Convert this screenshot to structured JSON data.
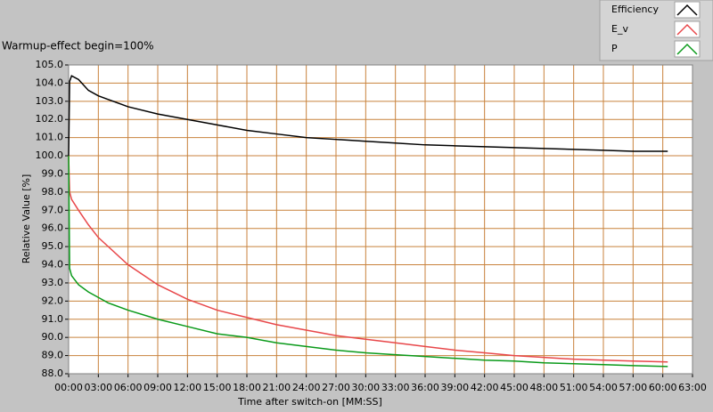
{
  "chart_data": {
    "type": "line",
    "title": "Warmup-effect begin=100%",
    "x_label": "Time after switch-on [MM:SS]",
    "y_label": "Relative Value [%]",
    "x": [
      0,
      0.1,
      0.3,
      1,
      2,
      3,
      4,
      6,
      9,
      12,
      15,
      18,
      21,
      24,
      27,
      30,
      33,
      36,
      39,
      42,
      45,
      48,
      51,
      54,
      57,
      60.5
    ],
    "series": [
      {
        "name": "Efficiency",
        "color": "#000000",
        "values": [
          100,
          104.1,
          104.4,
          104.2,
          103.6,
          103.3,
          103.1,
          102.7,
          102.3,
          102.0,
          101.7,
          101.4,
          101.2,
          101.0,
          100.9,
          100.8,
          100.7,
          100.6,
          100.55,
          100.5,
          100.45,
          100.4,
          100.35,
          100.3,
          100.25,
          100.25
        ]
      },
      {
        "name": "E_v",
        "color": "#e8474a",
        "values": [
          100,
          98.0,
          97.6,
          97.0,
          96.2,
          95.5,
          95.0,
          94.0,
          92.9,
          92.1,
          91.5,
          91.1,
          90.7,
          90.4,
          90.1,
          89.9,
          89.7,
          89.5,
          89.3,
          89.15,
          89.0,
          88.9,
          88.8,
          88.75,
          88.7,
          88.65
        ]
      },
      {
        "name": "P",
        "color": "#0a9a1a",
        "values": [
          100,
          93.8,
          93.4,
          92.9,
          92.5,
          92.2,
          91.9,
          91.5,
          91.0,
          90.6,
          90.2,
          90.0,
          89.7,
          89.5,
          89.3,
          89.15,
          89.05,
          88.95,
          88.85,
          88.75,
          88.7,
          88.6,
          88.55,
          88.5,
          88.45,
          88.4
        ]
      }
    ],
    "xlim": [
      0,
      63
    ],
    "xticks": [
      {
        "value": 0,
        "label": "00:00"
      },
      {
        "value": 3,
        "label": "03:00"
      },
      {
        "value": 6,
        "label": "06:00"
      },
      {
        "value": 9,
        "label": "09:00"
      },
      {
        "value": 12,
        "label": "12:00"
      },
      {
        "value": 15,
        "label": "15:00"
      },
      {
        "value": 18,
        "label": "18:00"
      },
      {
        "value": 21,
        "label": "21:00"
      },
      {
        "value": 24,
        "label": "24:00"
      },
      {
        "value": 27,
        "label": "27:00"
      },
      {
        "value": 30,
        "label": "30:00"
      },
      {
        "value": 33,
        "label": "33:00"
      },
      {
        "value": 36,
        "label": "36:00"
      },
      {
        "value": 39,
        "label": "39:00"
      },
      {
        "value": 42,
        "label": "42:00"
      },
      {
        "value": 45,
        "label": "45:00"
      },
      {
        "value": 48,
        "label": "48:00"
      },
      {
        "value": 51,
        "label": "51:00"
      },
      {
        "value": 54,
        "label": "54:00"
      },
      {
        "value": 57,
        "label": "57:00"
      },
      {
        "value": 60,
        "label": "60:00"
      },
      {
        "value": 63,
        "label": "63:00"
      }
    ],
    "ylim": [
      88,
      105
    ],
    "yticks": [
      {
        "value": 88,
        "label": "88.0"
      },
      {
        "value": 89,
        "label": "89.0"
      },
      {
        "value": 90,
        "label": "90.0"
      },
      {
        "value": 91,
        "label": "91.0"
      },
      {
        "value": 92,
        "label": "92.0"
      },
      {
        "value": 93,
        "label": "93.0"
      },
      {
        "value": 94,
        "label": "94.0"
      },
      {
        "value": 95,
        "label": "95.0"
      },
      {
        "value": 96,
        "label": "96.0"
      },
      {
        "value": 97,
        "label": "97.0"
      },
      {
        "value": 98,
        "label": "98.0"
      },
      {
        "value": 99,
        "label": "99.0"
      },
      {
        "value": 100,
        "label": "100.0"
      },
      {
        "value": 101,
        "label": "101.0"
      },
      {
        "value": 102,
        "label": "102.0"
      },
      {
        "value": 103,
        "label": "103.0"
      },
      {
        "value": 104,
        "label": "104.0"
      },
      {
        "value": 105,
        "label": "105.0"
      }
    ],
    "grid": true,
    "grid_color": "#c8823c",
    "legend": "top-right"
  }
}
